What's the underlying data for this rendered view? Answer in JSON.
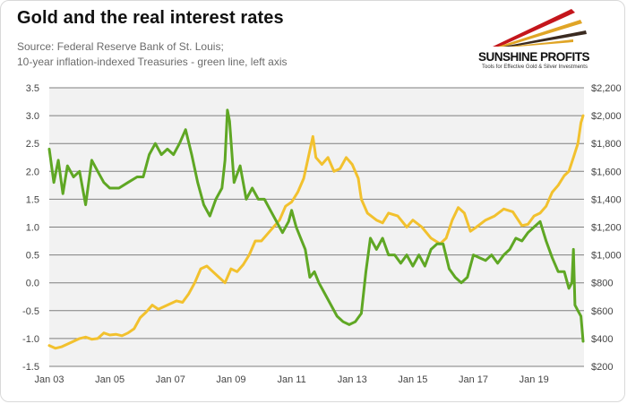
{
  "title": "Gold and the real interest rates",
  "subtitle_line1": "Source: Federal Reserve Bank of St. Louis;",
  "subtitle_line2": "10-year inflation-indexed Treasuries - green line, left axis",
  "logo": {
    "name": "SUNSHINE PROFITS",
    "tagline": "Tools for Effective Gold & Silver Investments"
  },
  "colors": {
    "gold_series": "#f2c12e",
    "tips_series": "#5fa724",
    "plot_background": "#f2f2f2",
    "grid": "#7f7f7f",
    "logo_red": "#c4161c",
    "logo_gold": "#e0a526",
    "logo_dark": "#3a2a20"
  },
  "chart_data": {
    "type": "line",
    "x_tick_labels": [
      "Jan 03",
      "Jan 05",
      "Jan 07",
      "Jan 09",
      "Jan 11",
      "Jan 13",
      "Jan 15",
      "Jan 17",
      "Jan 19"
    ],
    "x_range": [
      2003.0,
      2020.65
    ],
    "left_axis": {
      "ylim": [
        -1.5,
        3.5
      ],
      "ticks": [
        "3.5",
        "3.0",
        "2.5",
        "2.0",
        "1.5",
        "1.0",
        "0.5",
        "0.0",
        "-0.5",
        "-1.0",
        "-1.5"
      ]
    },
    "right_axis": {
      "ylim": [
        200,
        2200
      ],
      "ticks": [
        "$2,200",
        "$2,000",
        "$1,800",
        "$1,600",
        "$1,400",
        "$1,200",
        "$1,000",
        "$800",
        "$600",
        "$400",
        "$200"
      ]
    },
    "grid": "horizontal",
    "series": [
      {
        "axis": "left",
        "color": "#5fa724",
        "x": [
          2003.0,
          2003.15,
          2003.3,
          2003.45,
          2003.6,
          2003.8,
          2004.0,
          2004.2,
          2004.4,
          2004.6,
          2004.8,
          2005.0,
          2005.3,
          2005.6,
          2005.9,
          2006.1,
          2006.3,
          2006.5,
          2006.7,
          2006.9,
          2007.1,
          2007.3,
          2007.5,
          2007.7,
          2007.9,
          2008.1,
          2008.3,
          2008.5,
          2008.7,
          2008.8,
          2008.88,
          2008.95,
          2009.1,
          2009.3,
          2009.5,
          2009.7,
          2009.9,
          2010.1,
          2010.3,
          2010.5,
          2010.7,
          2010.9,
          2011.0,
          2011.15,
          2011.3,
          2011.45,
          2011.6,
          2011.75,
          2011.9,
          2012.1,
          2012.3,
          2012.5,
          2012.7,
          2012.9,
          2013.1,
          2013.3,
          2013.45,
          2013.6,
          2013.8,
          2014.0,
          2014.2,
          2014.4,
          2014.6,
          2014.8,
          2015.0,
          2015.2,
          2015.4,
          2015.6,
          2015.8,
          2016.0,
          2016.2,
          2016.4,
          2016.6,
          2016.8,
          2017.0,
          2017.2,
          2017.4,
          2017.6,
          2017.8,
          2018.0,
          2018.2,
          2018.4,
          2018.6,
          2018.8,
          2019.0,
          2019.2,
          2019.4,
          2019.6,
          2019.8,
          2020.0,
          2020.15,
          2020.25,
          2020.3,
          2020.35,
          2020.45,
          2020.55,
          2020.62
        ],
        "y": [
          2.4,
          1.8,
          2.2,
          1.6,
          2.1,
          1.9,
          2.0,
          1.4,
          2.2,
          2.0,
          1.8,
          1.7,
          1.7,
          1.8,
          1.9,
          1.9,
          2.3,
          2.5,
          2.3,
          2.4,
          2.3,
          2.5,
          2.75,
          2.3,
          1.8,
          1.4,
          1.2,
          1.5,
          1.7,
          2.2,
          3.1,
          2.9,
          1.8,
          2.1,
          1.5,
          1.7,
          1.5,
          1.5,
          1.3,
          1.1,
          0.9,
          1.1,
          1.3,
          1.0,
          0.8,
          0.6,
          0.1,
          0.2,
          0.0,
          -0.2,
          -0.4,
          -0.6,
          -0.7,
          -0.75,
          -0.7,
          -0.55,
          0.2,
          0.8,
          0.6,
          0.8,
          0.5,
          0.5,
          0.35,
          0.5,
          0.3,
          0.5,
          0.3,
          0.6,
          0.7,
          0.7,
          0.25,
          0.1,
          0.0,
          0.1,
          0.5,
          0.45,
          0.4,
          0.5,
          0.35,
          0.5,
          0.6,
          0.8,
          0.75,
          0.9,
          1.0,
          1.1,
          0.75,
          0.45,
          0.2,
          0.2,
          -0.1,
          0.0,
          0.6,
          -0.4,
          -0.5,
          -0.6,
          -1.05
        ]
      },
      {
        "axis": "right",
        "color": "#f2c12e",
        "x": [
          2003.0,
          2003.2,
          2003.4,
          2003.6,
          2003.8,
          2004.0,
          2004.2,
          2004.4,
          2004.6,
          2004.8,
          2005.0,
          2005.2,
          2005.4,
          2005.6,
          2005.8,
          2006.0,
          2006.2,
          2006.4,
          2006.6,
          2006.8,
          2007.0,
          2007.2,
          2007.4,
          2007.6,
          2007.8,
          2008.0,
          2008.2,
          2008.4,
          2008.6,
          2008.8,
          2009.0,
          2009.2,
          2009.4,
          2009.6,
          2009.8,
          2010.0,
          2010.2,
          2010.4,
          2010.6,
          2010.8,
          2011.0,
          2011.2,
          2011.4,
          2011.6,
          2011.7,
          2011.8,
          2012.0,
          2012.2,
          2012.4,
          2012.6,
          2012.8,
          2013.0,
          2013.2,
          2013.3,
          2013.5,
          2013.8,
          2014.0,
          2014.2,
          2014.5,
          2014.8,
          2015.0,
          2015.3,
          2015.6,
          2015.9,
          2016.1,
          2016.3,
          2016.5,
          2016.7,
          2016.9,
          2017.1,
          2017.4,
          2017.7,
          2018.0,
          2018.3,
          2018.6,
          2018.8,
          2019.0,
          2019.2,
          2019.4,
          2019.6,
          2019.8,
          2020.0,
          2020.15,
          2020.3,
          2020.45,
          2020.55,
          2020.62
        ],
        "y": [
          350,
          330,
          340,
          360,
          380,
          400,
          410,
          395,
          400,
          440,
          425,
          430,
          420,
          440,
          470,
          550,
          590,
          640,
          610,
          630,
          650,
          670,
          660,
          720,
          800,
          900,
          920,
          880,
          840,
          800,
          900,
          880,
          930,
          1000,
          1100,
          1100,
          1150,
          1200,
          1250,
          1350,
          1380,
          1450,
          1550,
          1750,
          1850,
          1700,
          1650,
          1700,
          1600,
          1620,
          1700,
          1650,
          1550,
          1400,
          1300,
          1250,
          1230,
          1300,
          1280,
          1200,
          1250,
          1200,
          1120,
          1080,
          1120,
          1250,
          1340,
          1300,
          1170,
          1200,
          1250,
          1280,
          1330,
          1310,
          1210,
          1220,
          1280,
          1300,
          1350,
          1450,
          1500,
          1570,
          1600,
          1700,
          1800,
          1950,
          2000
        ]
      }
    ]
  }
}
